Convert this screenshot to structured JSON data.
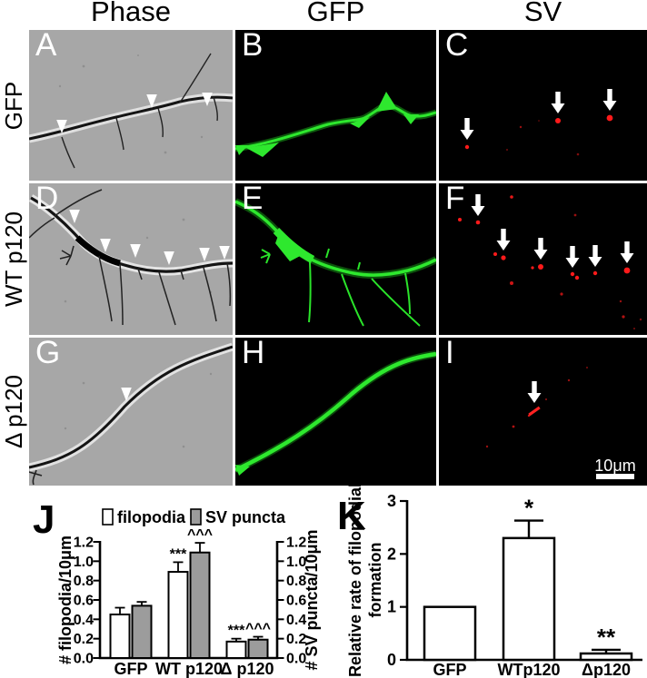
{
  "figure": {
    "col_headers": [
      "Phase",
      "GFP",
      "SV"
    ],
    "row_labels": [
      "GFP",
      "WT p120",
      "Δ p120"
    ],
    "panel_letters": [
      "A",
      "B",
      "C",
      "D",
      "E",
      "F",
      "G",
      "H",
      "I"
    ],
    "scale_bar_label": "10μm",
    "colors": {
      "gfp_green": "#2ee82e",
      "sv_red": "#ff1a1a",
      "bar_gray": "#9c9c9c",
      "phase_gray": "#a7a7a7"
    }
  },
  "chart_data": [
    {
      "panel_label": "J",
      "type": "bar",
      "categories": [
        "GFP",
        "WT p120",
        "Δ p120"
      ],
      "series": [
        {
          "name": "filopodia",
          "fill": "#ffffff",
          "values": [
            0.45,
            0.89,
            0.17
          ],
          "errors": [
            0.07,
            0.1,
            0.03
          ],
          "annotations": [
            "",
            "***",
            "***"
          ]
        },
        {
          "name": "SV puncta",
          "fill": "#9c9c9c",
          "values": [
            0.54,
            1.09,
            0.19
          ],
          "errors": [
            0.04,
            0.1,
            0.03
          ],
          "annotations": [
            "",
            "^^^",
            "^^^"
          ]
        }
      ],
      "ylabel_left": "# filopodia/10μm",
      "ylabel_right": "# SV puncta/10μm",
      "ylim": [
        0,
        1.2
      ],
      "yticks": [
        "0.0",
        "0.2",
        "0.4",
        "0.6",
        "0.8",
        "1.0",
        "1.2"
      ],
      "legend_position": "top",
      "grid": false
    },
    {
      "panel_label": "K",
      "type": "bar",
      "categories": [
        "GFP",
        "WTp120",
        "Δp120"
      ],
      "series": [
        {
          "fill": "#ffffff",
          "values": [
            1.0,
            2.3,
            0.12
          ],
          "errors": [
            0,
            0.33,
            0.07
          ],
          "annotations": [
            "",
            "*",
            "**"
          ]
        }
      ],
      "ylabel": [
        "Relative rate of filopodial",
        "formation"
      ],
      "ylim": [
        0,
        3
      ],
      "yticks": [
        "0",
        "1",
        "2",
        "3"
      ],
      "grid": false
    }
  ]
}
